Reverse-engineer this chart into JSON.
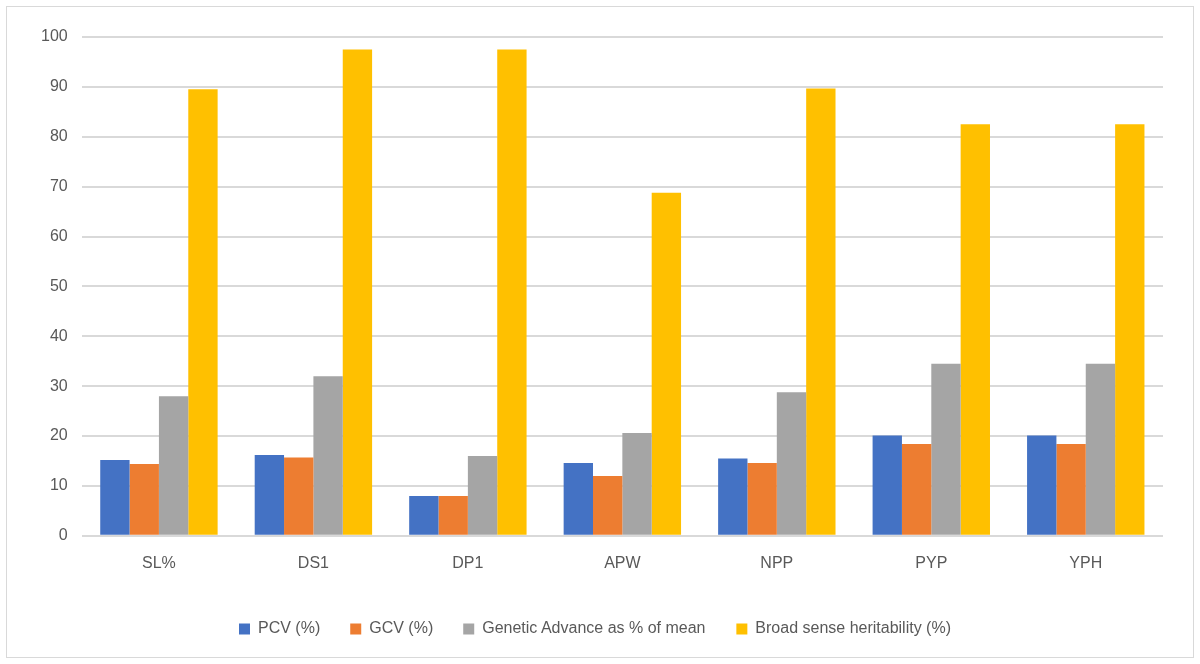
{
  "chart_data": {
    "type": "bar",
    "categories": [
      "SL%",
      "DS1",
      "DP1",
      "APW",
      "NPP",
      "PYP",
      "YPH"
    ],
    "series": [
      {
        "name": "PCV (%)",
        "color": "#4472c4",
        "values": [
          15.2,
          16.2,
          8,
          14.6,
          15.5,
          20.1,
          20.1
        ]
      },
      {
        "name": "GCV (%)",
        "color": "#ed7d31",
        "values": [
          14.4,
          15.7,
          8,
          12,
          14.6,
          18.4,
          18.4
        ]
      },
      {
        "name": "Genetic Advance as % of mean",
        "color": "#a5a5a5",
        "values": [
          28,
          32,
          16,
          20.6,
          28.8,
          34.5,
          34.5
        ]
      },
      {
        "name": "Broad sense heritability (%)",
        "color": "#ffc000",
        "values": [
          89.5,
          97.5,
          97.5,
          68.8,
          89.7,
          82.5,
          82.5
        ]
      }
    ],
    "ylim": [
      0,
      100
    ],
    "yticks": [
      0,
      10,
      20,
      30,
      40,
      50,
      60,
      70,
      80,
      90,
      100
    ],
    "grid": "y",
    "legend": "bottom"
  }
}
